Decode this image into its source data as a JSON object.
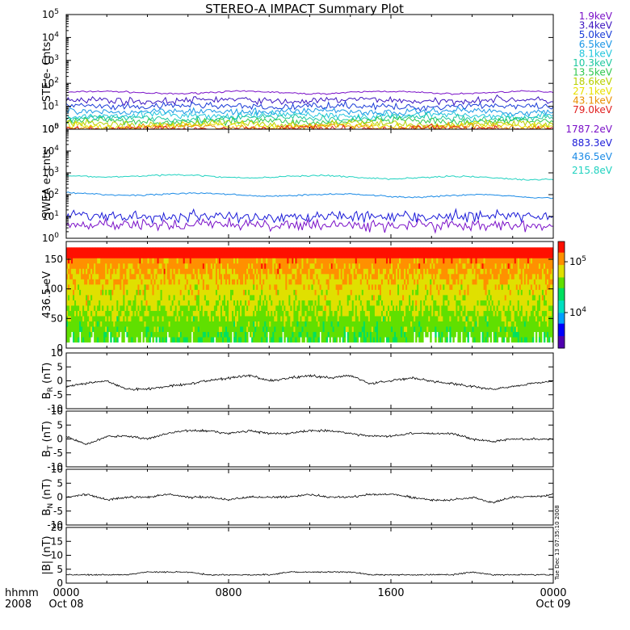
{
  "title": "STEREO-A IMPACT Summary Plot",
  "time_axis": {
    "corner_top": "hhmm",
    "corner_bottom": "2008",
    "ticks": [
      {
        "hour": 0,
        "top": "0000",
        "bottom": "Oct 08"
      },
      {
        "hour": 8,
        "top": "0800",
        "bottom": ""
      },
      {
        "hour": 16,
        "top": "1600",
        "bottom": ""
      },
      {
        "hour": 24,
        "top": "0000",
        "bottom": "Oct 09"
      }
    ],
    "range_hours": [
      0,
      24
    ]
  },
  "timestamp": "Tue Dec 13 07:35:10 2008",
  "colors": {
    "ste": [
      "#7a10c8",
      "#3c14c0",
      "#1a3cd8",
      "#1a96e6",
      "#22c6dc",
      "#1ec8a0",
      "#30c850",
      "#b8d000",
      "#e8e000",
      "#e89000",
      "#e02020"
    ],
    "swea": [
      "#7a10c8",
      "#1a1ad8",
      "#1a8ae6",
      "#20d2c0"
    ],
    "pad_colorbar": [
      "#5000b0",
      "#0000ff",
      "#00a0ff",
      "#00e0c0",
      "#00e060",
      "#60e000",
      "#e0e000",
      "#ff9000",
      "#ff1000"
    ]
  },
  "chart_data": [
    {
      "type": "line",
      "panel": "ste",
      "ylabel": "STE e- Cnts",
      "yscale": "log",
      "ylim": [
        1,
        100000
      ],
      "yticks": [
        "10^0",
        "10^1",
        "10^2",
        "10^3",
        "10^4",
        "10^5"
      ],
      "series": [
        {
          "name": "1.9keV",
          "level": 40
        },
        {
          "name": "3.4keV",
          "level": 18
        },
        {
          "name": "5.0keV",
          "level": 10
        },
        {
          "name": "6.5keV",
          "level": 6
        },
        {
          "name": "8.1keV",
          "level": 4
        },
        {
          "name": "10.3keV",
          "level": 3
        },
        {
          "name": "13.5keV",
          "level": 2.2
        },
        {
          "name": "18.6keV",
          "level": 1.7
        },
        {
          "name": "27.1keV",
          "level": 1.4
        },
        {
          "name": "43.1keV",
          "level": 1.2
        },
        {
          "name": "79.0keV",
          "level": 1.05
        }
      ]
    },
    {
      "type": "line",
      "panel": "swea",
      "ylabel": "SWEA e- cnts",
      "yscale": "log",
      "ylim": [
        1,
        100000
      ],
      "yticks": [
        "10^0",
        "10^1",
        "10^2",
        "10^3",
        "10^4",
        "10^5"
      ],
      "series": [
        {
          "name": "1787.2eV",
          "level": 4
        },
        {
          "name": "883.3eV",
          "level": 10
        },
        {
          "name": "436.5eV",
          "level": 110
        },
        {
          "name": "215.8eV",
          "level": 750
        }
      ]
    },
    {
      "type": "heatmap",
      "panel": "pad",
      "ylabel": "436.5 eV",
      "ylim": [
        0,
        180
      ],
      "yticks": [
        0,
        50,
        100,
        150
      ],
      "colorbar_ticks": [
        "10^4",
        "10^5"
      ],
      "colorbar_range": [
        2000,
        250000
      ]
    },
    {
      "type": "line",
      "panel": "br",
      "ylabel": "B",
      "ylabel_sub": "R",
      "ylabel_unit": "(nT)",
      "ylim": [
        -10,
        10
      ],
      "yticks": [
        -10,
        -5,
        0,
        5,
        10
      ],
      "x": [
        0,
        1,
        2,
        3,
        4,
        5,
        6,
        7,
        8,
        9,
        10,
        11,
        12,
        13,
        14,
        15,
        16,
        17,
        18,
        19,
        20,
        21,
        22,
        23,
        24
      ],
      "y": [
        -2,
        -1,
        0,
        -3,
        -3,
        -2,
        -1,
        0,
        1,
        2,
        0,
        1,
        2,
        1,
        2,
        -1,
        0,
        1,
        0,
        -1,
        -2,
        -3,
        -2,
        -1,
        0
      ]
    },
    {
      "type": "line",
      "panel": "bt",
      "ylabel": "B",
      "ylabel_sub": "T",
      "ylabel_unit": "(nT)",
      "ylim": [
        -10,
        10
      ],
      "yticks": [
        -10,
        -5,
        0,
        5,
        10
      ],
      "x": [
        0,
        1,
        2,
        3,
        4,
        5,
        6,
        7,
        8,
        9,
        10,
        11,
        12,
        13,
        14,
        15,
        16,
        17,
        18,
        19,
        20,
        21,
        22,
        23,
        24
      ],
      "y": [
        1,
        -2,
        1,
        1,
        0,
        2,
        3,
        3,
        2,
        3,
        2,
        2,
        3,
        3,
        2,
        1,
        1,
        2,
        2,
        2,
        0,
        -1,
        0,
        0,
        0
      ]
    },
    {
      "type": "line",
      "panel": "bn",
      "ylabel": "B",
      "ylabel_sub": "N",
      "ylabel_unit": "(nT)",
      "ylim": [
        -10,
        10
      ],
      "yticks": [
        -10,
        -5,
        0,
        5,
        10
      ],
      "x": [
        0,
        1,
        2,
        3,
        4,
        5,
        6,
        7,
        8,
        9,
        10,
        11,
        12,
        13,
        14,
        15,
        16,
        17,
        18,
        19,
        20,
        21,
        22,
        23,
        24
      ],
      "y": [
        0,
        1,
        -1,
        0,
        0,
        1,
        0,
        0,
        -1,
        0,
        0,
        0,
        1,
        0,
        0,
        1,
        1,
        0,
        -1,
        -1,
        0,
        -2,
        0,
        0,
        1
      ]
    },
    {
      "type": "line",
      "panel": "bmag",
      "ylabel": "|B| (nT)",
      "ylim": [
        0,
        20
      ],
      "yticks": [
        0,
        5,
        10,
        15,
        20
      ],
      "x": [
        0,
        1,
        2,
        3,
        4,
        5,
        6,
        7,
        8,
        9,
        10,
        11,
        12,
        13,
        14,
        15,
        16,
        17,
        18,
        19,
        20,
        21,
        22,
        23,
        24
      ],
      "y": [
        3,
        3,
        3,
        3,
        4,
        4,
        4,
        3,
        3,
        3,
        3,
        4,
        4,
        4,
        4,
        3,
        3,
        3,
        3,
        3,
        4,
        3,
        3,
        3,
        3
      ]
    }
  ]
}
